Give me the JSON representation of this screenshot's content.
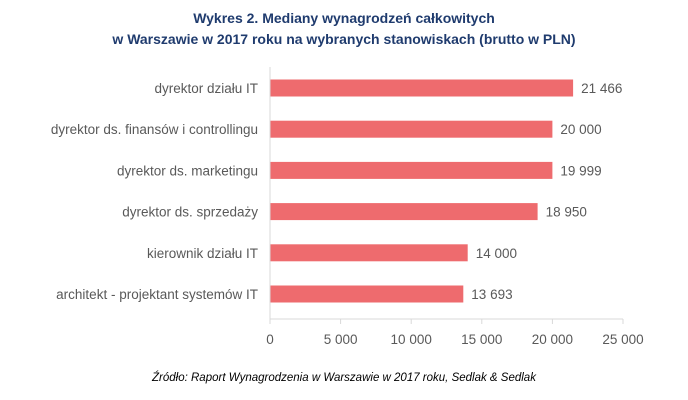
{
  "chart_data": {
    "type": "bar",
    "orientation": "horizontal",
    "title": [
      "Wykres 2. Mediany wynagrodzeń całkowitych",
      "w Warszawie w 2017 roku na wybranych stanowiskach (brutto w PLN)"
    ],
    "categories": [
      "dyrektor działu IT",
      "dyrektor ds. finansów i controllingu",
      "dyrektor ds. marketingu",
      "dyrektor ds. sprzedaży",
      "kierownik działu IT",
      "architekt - projektant systemów IT"
    ],
    "values": [
      21466,
      20000,
      19999,
      18950,
      14000,
      13693
    ],
    "value_labels": [
      "21 466",
      "20 000",
      "19 999",
      "18 950",
      "14 000",
      "13 693"
    ],
    "xlim": [
      0,
      25000
    ],
    "xticks": [
      0,
      5000,
      10000,
      15000,
      20000,
      25000
    ],
    "xtick_labels": [
      "0",
      "5 000",
      "10 000",
      "15 000",
      "20 000",
      "25 000"
    ],
    "bar_color": "#ee6b6e",
    "grid": false,
    "legend": "none"
  },
  "source": "Źródło: Raport Wynagrodzenia w Warszawie w 2017 roku, Sedlak & Sedlak"
}
